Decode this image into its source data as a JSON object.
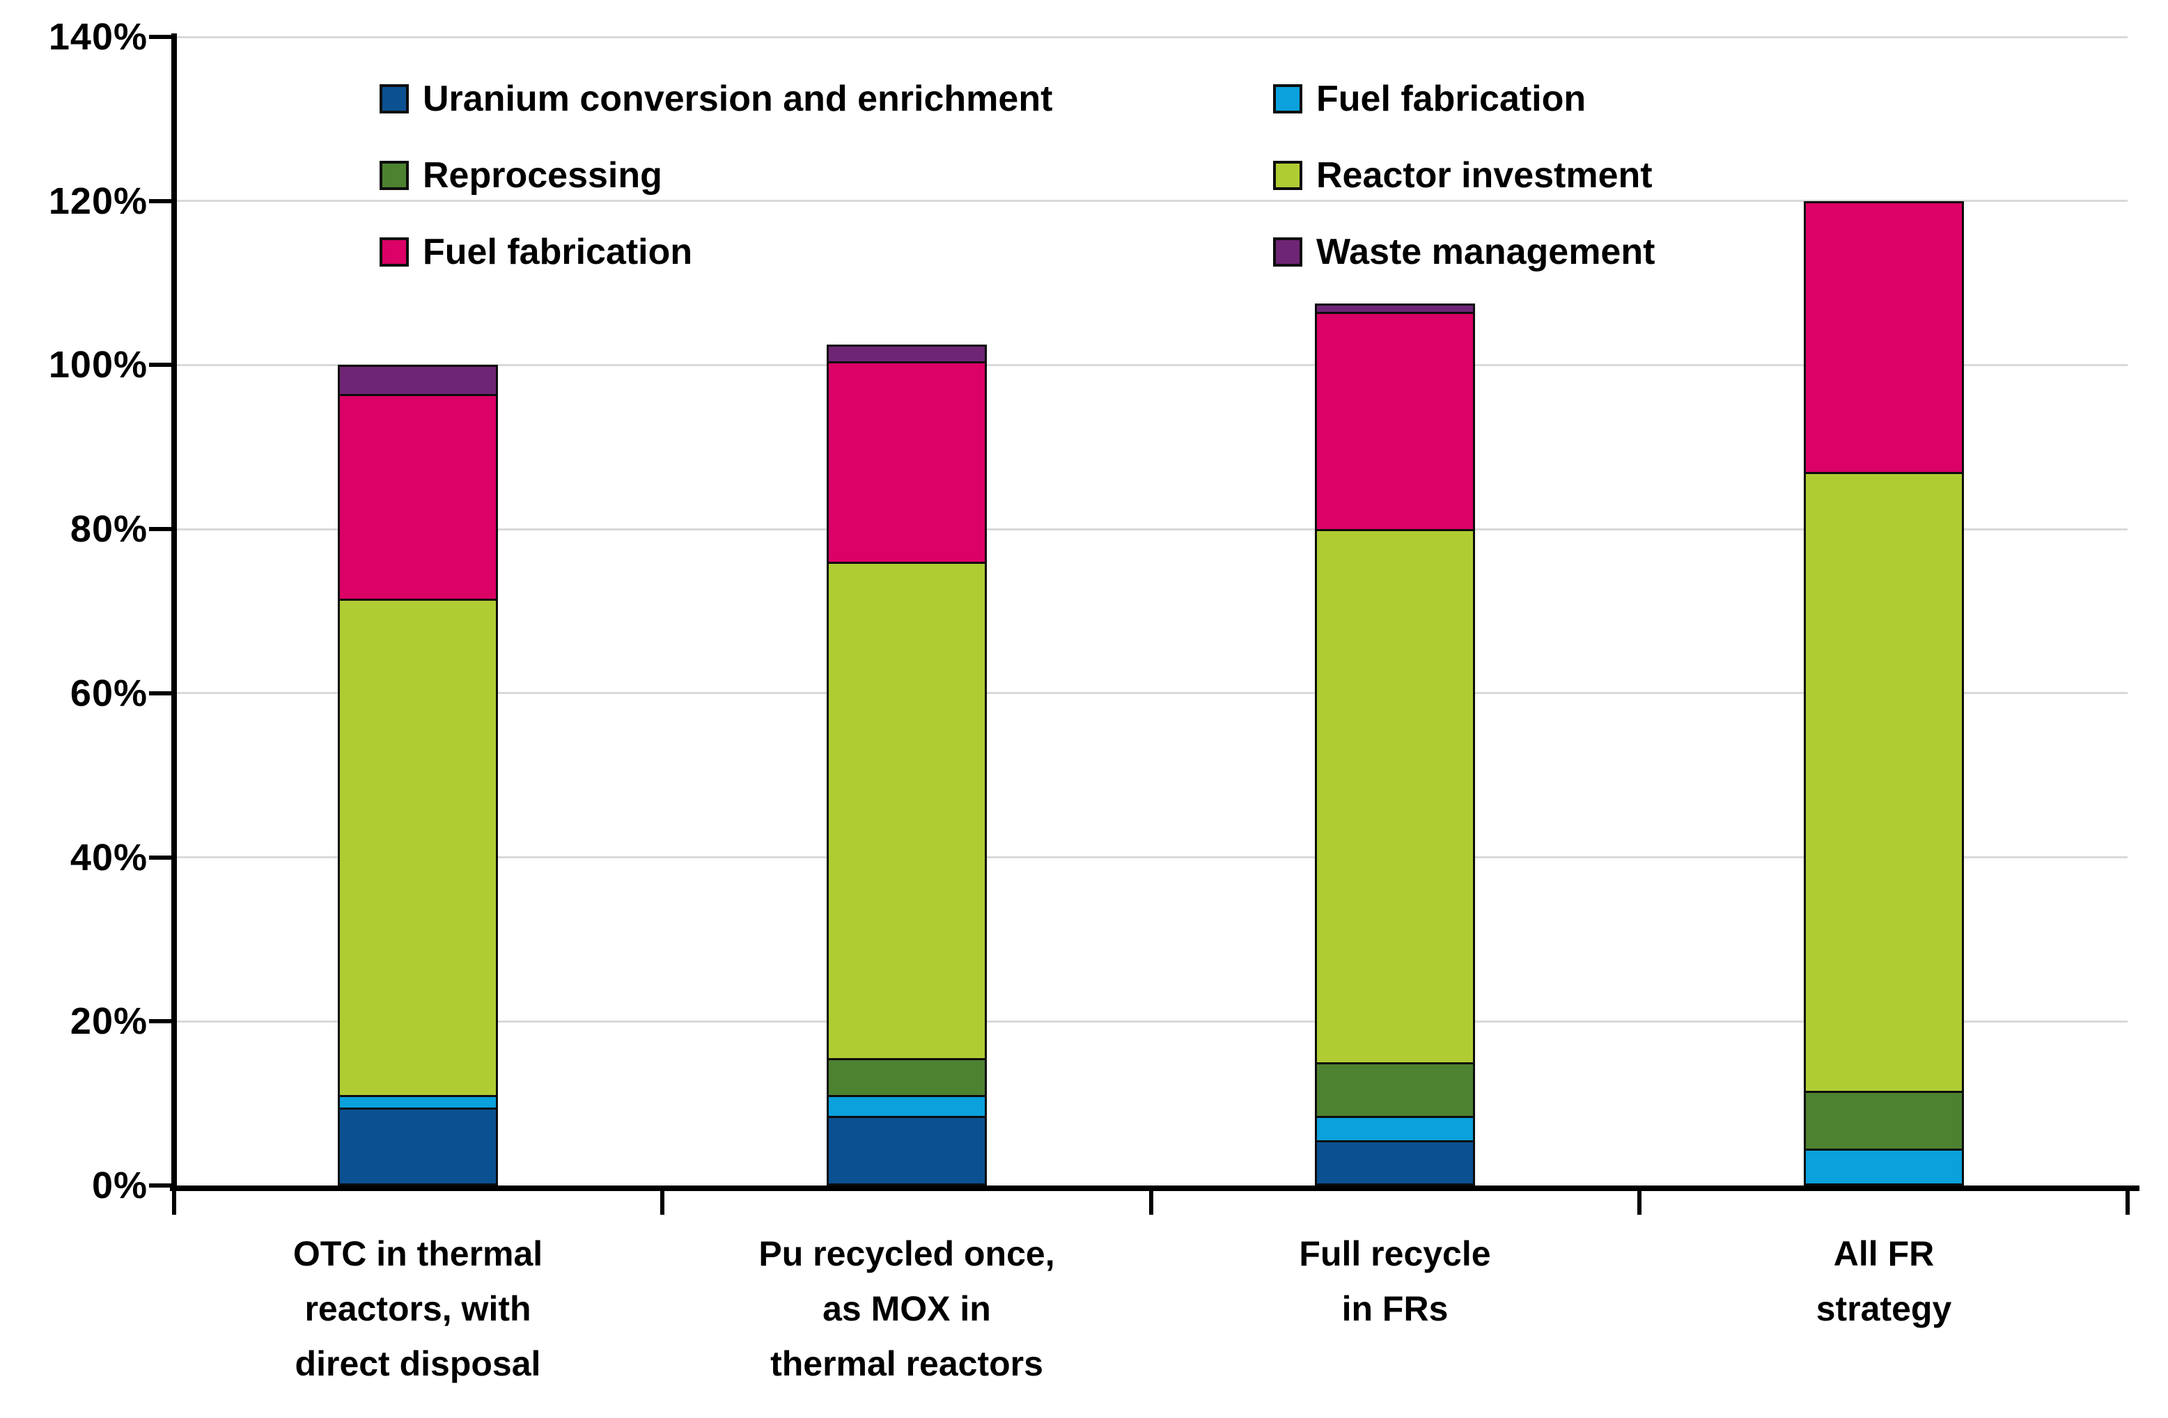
{
  "chart_data": {
    "type": "bar",
    "stacked": true,
    "title": "",
    "xlabel": "",
    "ylabel": "",
    "ylim": [
      0,
      140
    ],
    "ytick_step": 20,
    "ytick_labels": [
      "0%",
      "20%",
      "40%",
      "60%",
      "80%",
      "100%",
      "120%",
      "140%"
    ],
    "grid": true,
    "gridline_color": "#d9d9d9",
    "axis_color": "#000000",
    "categories": [
      "OTC in thermal\nreactors, with\ndirect disposal",
      "Pu recycled once,\nas MOX in\nthermal reactors",
      "Full recycle\nin FRs",
      "All FR\nstrategy"
    ],
    "category_totals_pct": [
      100,
      102.5,
      107.5,
      120
    ],
    "series": [
      {
        "name": "Uranium conversion and enrichment",
        "color": "#0b5191",
        "values": [
          9.5,
          8.5,
          5.5,
          0
        ]
      },
      {
        "name": "Fuel fabrication",
        "color": "#0aa1dc",
        "values": [
          1.5,
          2.5,
          3.0,
          4.5
        ]
      },
      {
        "name": "Reprocessing",
        "color": "#4d8230",
        "values": [
          0,
          4.5,
          6.5,
          7.0
        ]
      },
      {
        "name": "Reactor investment",
        "color": "#b0cc33",
        "values": [
          60.5,
          60.5,
          65.0,
          75.5
        ]
      },
      {
        "name": "Fuel fabrication",
        "color": "#dc0166",
        "values": [
          25.0,
          24.5,
          26.5,
          33.0
        ]
      },
      {
        "name": "Waste management",
        "color": "#6f2575",
        "values": [
          3.5,
          2.0,
          1.0,
          0
        ]
      }
    ],
    "legend_position": "top-inside, two columns"
  },
  "legend": {
    "items": [
      {
        "label": "Uranium conversion and enrichment",
        "series_index": 0,
        "column": 0,
        "row": 0
      },
      {
        "label": "Fuel fabrication",
        "series_index": 1,
        "column": 1,
        "row": 0
      },
      {
        "label": "Reprocessing",
        "series_index": 2,
        "column": 0,
        "row": 1
      },
      {
        "label": "Reactor investment",
        "series_index": 3,
        "column": 1,
        "row": 1
      },
      {
        "label": "Fuel fabrication",
        "series_index": 4,
        "column": 0,
        "row": 2
      },
      {
        "label": "Waste management",
        "series_index": 5,
        "column": 1,
        "row": 2
      }
    ]
  }
}
